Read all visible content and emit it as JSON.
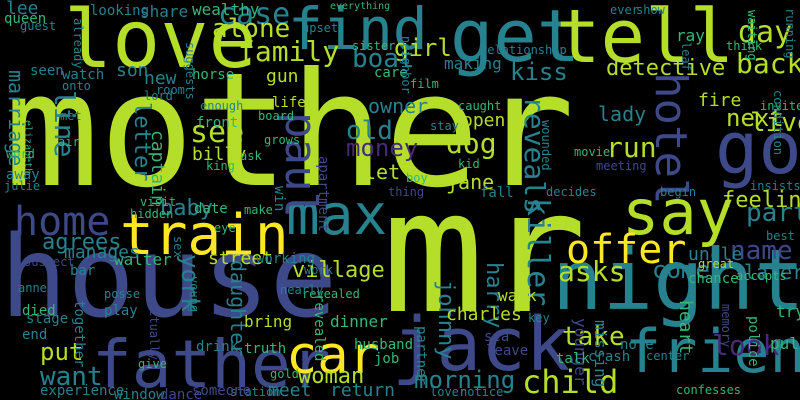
{
  "palette": {
    "background": "#000000",
    "lime": "#b5de2b",
    "yellow": "#fde725",
    "green": "#35b779",
    "teal": "#26828e",
    "blue": "#3e4989",
    "purple": "#482878"
  },
  "words": [
    "mother",
    "mr",
    "house",
    "love",
    "get",
    "tell",
    "find",
    "go",
    "night",
    "jack",
    "father",
    "friend",
    "train",
    "max",
    "say",
    "home",
    "car",
    "offer",
    "paul",
    "hotel",
    "boat",
    "family",
    "see",
    "day",
    "back",
    "old",
    "dog",
    "run",
    "reveals",
    "killer",
    "child",
    "take",
    "morning",
    "woman",
    "look",
    "asks",
    "come",
    "part",
    "name",
    "next",
    "live",
    "case",
    "alone",
    "girl",
    "kiss",
    "detective",
    "money",
    "letter",
    "line",
    "marriage",
    "york",
    "village",
    "agrees",
    "want",
    "put",
    "new",
    "son",
    "baby",
    "feeling",
    "later",
    "johnny",
    "harry",
    "street",
    "walter",
    "daughter",
    "captain",
    "billy",
    "jane",
    "lady",
    "owner",
    "open",
    "let",
    "charles",
    "fire",
    "uncle",
    "meet",
    "return",
    "manages",
    "lee",
    "queen",
    "seen",
    "share",
    "wealthy",
    "everything",
    "sister",
    "making",
    "watch",
    "horse",
    "gun",
    "care",
    "relationship",
    "film",
    "caught",
    "ever",
    "show",
    "ray",
    "waiting",
    "leaf",
    "think",
    "running",
    "invite",
    "insists",
    "best",
    "try",
    "pull",
    "police",
    "memory",
    "accepts",
    "chance",
    "great",
    "heart",
    "missing",
    "younger",
    "note",
    "center",
    "confesses",
    "crash",
    "talk",
    "leave",
    "sea",
    "key",
    "walk",
    "partner",
    "lover",
    "notice",
    "dinner",
    "husband",
    "revealed",
    "job",
    "bring",
    "truth",
    "drink",
    "station",
    "someone",
    "window",
    "dance",
    "experience",
    "end",
    "died",
    "bar",
    "suspect",
    "away",
    "julie",
    "word",
    "air",
    "met",
    "elizabeth",
    "guest",
    "lord",
    "room",
    "enough",
    "life",
    "front",
    "king",
    "visit",
    "hidden",
    "make",
    "date",
    "win",
    "eye",
    "working",
    "apartment",
    "revealed2",
    "decides",
    "fall",
    "stay",
    "kid",
    "meeting",
    "movie",
    "begin",
    "ask",
    "together",
    "stage",
    "posse",
    "actually",
    "play",
    "sex",
    "young",
    "nearly",
    "work",
    "give",
    "gold",
    "onto",
    "already",
    "looking",
    "upset",
    "wounded",
    "neighbor",
    "board",
    "grows",
    "condition",
    "boy",
    "thing",
    "suggests",
    "anne"
  ],
  "labels": {
    "mother": "mother",
    "mr": "mr",
    "house": "house",
    "love": "love",
    "get": "get",
    "tell": "tell",
    "find": "find",
    "go": "go",
    "night": "night",
    "jack": "jack",
    "father": "father",
    "friend": "friend",
    "train": "train",
    "max": "max",
    "say": "say",
    "home": "home",
    "car": "car",
    "offer": "offer",
    "paul": "paul",
    "hotel": "hotel",
    "boat": "boat",
    "family": "family",
    "see": "see",
    "day": "day",
    "back": "back",
    "old": "old",
    "dog": "dog",
    "run": "run",
    "reveals": "reveals",
    "killer": "killer",
    "child": "child",
    "take": "take",
    "morning": "morning",
    "woman": "woman",
    "look": "look",
    "asks": "asks",
    "come": "come",
    "part": "part",
    "name": "name",
    "next": "next",
    "live": "live",
    "case": "case",
    "alone": "alone",
    "girl": "girl",
    "kiss": "kiss",
    "detective": "detective",
    "money": "money",
    "letter": "letter",
    "line": "line",
    "marriage": "marriage",
    "york": "york",
    "village": "village",
    "agrees": "agrees",
    "want": "want",
    "put": "put",
    "new": "new",
    "son": "son",
    "baby": "baby",
    "feeling": "feeling",
    "later": "later",
    "johnny": "johnny",
    "harry": "harry",
    "street": "street",
    "walter": "walter",
    "daughter": "daughter",
    "captain": "captain",
    "billy": "billy",
    "jane": "jane",
    "lady": "lady",
    "owner": "owner",
    "open": "open",
    "let": "let",
    "charles": "charles",
    "fire": "fire",
    "uncle": "uncle",
    "meet": "meet",
    "return": "return",
    "manages": "manages",
    "lee": "lee",
    "queen": "queen",
    "seen": "seen",
    "share": "share",
    "wealthy": "wealthy",
    "everything": "everything",
    "sister": "sister",
    "making": "making",
    "watch": "watch",
    "horse": "horse",
    "gun": "gun",
    "care": "care",
    "relationship": "relationship",
    "film": "film",
    "caught": "caught",
    "ever": "ever",
    "show": "show",
    "ray": "ray",
    "waiting": "waiting",
    "leaf": "leaf",
    "think": "think",
    "running": "running",
    "invite": "invite",
    "insists": "insists",
    "best": "best",
    "try": "try",
    "pull": "pull",
    "police": "police",
    "memory": "memory",
    "accepts": "accepts",
    "chance": "chance",
    "great": "great",
    "heart": "heart",
    "missing": "missing",
    "younger": "younger",
    "note": "note",
    "center": "center",
    "confesses": "confesses",
    "crash": "crash",
    "talk": "talk",
    "leave": "leave",
    "sea": "sea",
    "key": "key",
    "walk": "walk",
    "partner": "partner",
    "lover": "lover",
    "notice": "notice",
    "dinner": "dinner",
    "husband": "husband",
    "revealed": "revealed",
    "job": "job",
    "bring": "bring",
    "truth": "truth",
    "drink": "drink",
    "station": "station",
    "someone": "someone",
    "window": "window",
    "dance": "dance",
    "experience": "experience",
    "end": "end",
    "died": "died",
    "bar": "bar",
    "suspect": "suspect",
    "away": "away",
    "julie": "julie",
    "word": "word",
    "air": "air",
    "met": "met",
    "elizabeth": "elizabeth",
    "guest": "guest",
    "lord": "lord",
    "room": "room",
    "enough": "enough",
    "life": "life",
    "front": "front",
    "king": "king",
    "visit": "visit",
    "hidden": "hidden",
    "make": "make",
    "date": "date",
    "win": "win",
    "eye": "eye",
    "working": "working",
    "apartment": "apartment",
    "revealed2": "revealed",
    "decides": "decides",
    "fall": "fall",
    "stay": "stay",
    "kid": "kid",
    "meeting": "meeting",
    "movie": "movie",
    "begin": "begin",
    "ask": "ask",
    "together": "together",
    "stage": "stage",
    "posse": "posse",
    "actually": "actually",
    "play": "play",
    "sex": "sex",
    "young": "young",
    "nearly": "nearly",
    "work": "work",
    "give": "give",
    "gold": "gold",
    "onto": "onto",
    "already": "already",
    "looking": "looking",
    "upset": "upset",
    "wounded": "wounded",
    "neighbor": "neighbor",
    "board": "board",
    "grows": "grows",
    "condition": "condition",
    "boy": "boy",
    "thing": "thing",
    "suggests": "suggests",
    "anne": "anne"
  }
}
